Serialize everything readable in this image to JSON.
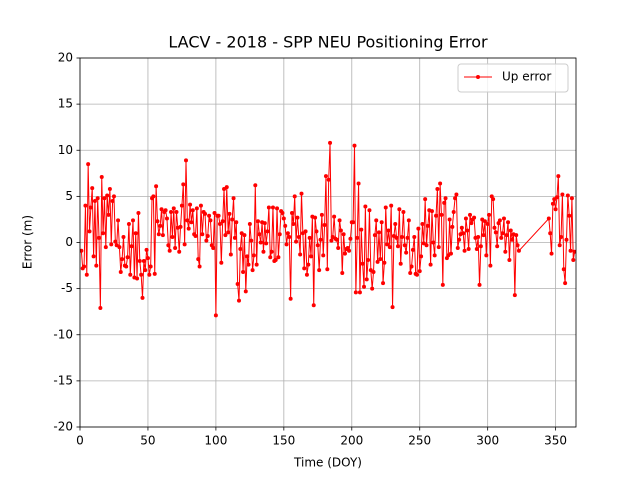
{
  "chart_data": {
    "type": "line",
    "title": "LACV - 2018 - SPP NEU Positioning Error",
    "xlabel": "Time (DOY)",
    "ylabel": "Error (m)",
    "xlim": [
      0,
      365
    ],
    "ylim": [
      -20,
      20
    ],
    "xticks": [
      0,
      50,
      100,
      150,
      200,
      250,
      300,
      350
    ],
    "yticks": [
      -20,
      -15,
      -10,
      -5,
      0,
      5,
      10,
      15,
      20
    ],
    "grid": true,
    "legend": "upper right",
    "x": [
      1,
      2,
      3,
      4,
      5,
      6,
      7,
      8,
      9,
      10,
      11,
      12,
      13,
      14,
      15,
      16,
      17,
      18,
      19,
      20,
      21,
      22,
      23,
      24,
      25,
      26,
      27,
      28,
      29,
      30,
      31,
      32,
      33,
      34,
      35,
      36,
      37,
      38,
      39,
      40,
      41,
      42,
      43,
      44,
      45,
      46,
      47,
      48,
      49,
      50,
      51,
      52,
      53,
      54,
      55,
      56,
      57,
      58,
      59,
      60,
      61,
      62,
      63,
      64,
      65,
      66,
      67,
      68,
      69,
      70,
      71,
      72,
      73,
      74,
      75,
      76,
      77,
      78,
      79,
      80,
      81,
      82,
      83,
      84,
      85,
      86,
      87,
      88,
      89,
      90,
      91,
      92,
      93,
      94,
      95,
      96,
      97,
      98,
      99,
      100,
      101,
      102,
      103,
      104,
      105,
      106,
      107,
      108,
      109,
      110,
      111,
      112,
      113,
      114,
      115,
      116,
      117,
      118,
      119,
      120,
      121,
      122,
      123,
      124,
      125,
      126,
      127,
      128,
      129,
      130,
      131,
      132,
      133,
      134,
      135,
      136,
      137,
      138,
      139,
      140,
      141,
      142,
      143,
      144,
      145,
      146,
      147,
      148,
      149,
      150,
      151,
      152,
      153,
      154,
      155,
      156,
      157,
      158,
      159,
      160,
      161,
      162,
      163,
      164,
      165,
      166,
      167,
      168,
      169,
      170,
      171,
      172,
      173,
      174,
      175,
      176,
      177,
      178,
      179,
      180,
      181,
      182,
      183,
      184,
      185,
      186,
      187,
      188,
      189,
      190,
      191,
      192,
      193,
      194,
      195,
      196,
      197,
      198,
      199,
      200,
      201,
      202,
      203,
      204,
      205,
      206,
      207,
      208,
      209,
      210,
      211,
      212,
      213,
      214,
      215,
      216,
      217,
      218,
      219,
      220,
      221,
      222,
      223,
      224,
      225,
      226,
      227,
      228,
      229,
      230,
      231,
      232,
      233,
      234,
      235,
      236,
      237,
      238,
      239,
      240,
      241,
      242,
      243,
      244,
      245,
      246,
      247,
      248,
      249,
      250,
      251,
      252,
      253,
      254,
      255,
      256,
      257,
      258,
      259,
      260,
      261,
      262,
      263,
      264,
      265,
      266,
      267,
      268,
      269,
      270,
      271,
      272,
      273,
      274,
      275,
      276,
      277,
      278,
      279,
      280,
      281,
      282,
      283,
      284,
      285,
      286,
      287,
      288,
      289,
      290,
      291,
      292,
      293,
      294,
      295,
      296,
      297,
      298,
      299,
      300,
      301,
      302,
      303,
      304,
      305,
      306,
      307,
      308,
      309,
      310,
      311,
      312,
      313,
      314,
      315,
      316,
      317,
      318,
      319,
      320,
      321,
      322,
      323,
      345,
      346,
      347,
      348,
      349,
      350,
      351,
      352,
      353,
      354,
      355,
      356,
      357,
      358,
      359,
      360,
      361,
      362,
      363,
      364
    ],
    "series": [
      {
        "name": "Up error",
        "color": "#ff0000",
        "values": [
          -0.9,
          -2.8,
          -2.6,
          4.0,
          -3.5,
          8.5,
          1.2,
          3.8,
          5.9,
          -1.5,
          4.5,
          -2.5,
          4.8,
          0.5,
          -7.1,
          7.1,
          1.0,
          4.8,
          -0.5,
          5.1,
          3.0,
          5.8,
          -0.2,
          4.5,
          5.0,
          0.1,
          -0.3,
          2.4,
          -0.5,
          -3.2,
          -1.8,
          0.6,
          -2.5,
          -2.6,
          -1.6,
          2.0,
          -3.5,
          -0.4,
          2.4,
          -3.8,
          1.0,
          -3.9,
          3.2,
          -2.0,
          -3.5,
          -6.0,
          -2.0,
          -3.0,
          -0.8,
          -1.7,
          -3.5,
          -2.6,
          4.8,
          5.0,
          -3.4,
          6.1,
          2.3,
          0.9,
          1.8,
          3.6,
          0.8,
          3.3,
          3.5,
          2.6,
          -0.3,
          -0.9,
          3.3,
          0.6,
          3.7,
          -0.6,
          3.3,
          1.6,
          -1.0,
          1.7,
          4.0,
          6.3,
          -0.2,
          8.9,
          2.4,
          1.5,
          4.1,
          2.2,
          3.5,
          0.9,
          0.7,
          3.7,
          -1.8,
          -2.6,
          4.0,
          0.9,
          3.3,
          3.1,
          0.2,
          0.7,
          2.9,
          2.4,
          -0.3,
          -0.6,
          3.2,
          -7.9,
          2.9,
          2.9,
          2.0,
          -2.2,
          2.3,
          5.8,
          0.8,
          6.0,
          1.1,
          3.1,
          -1.3,
          2.5,
          4.8,
          0.5,
          2.2,
          -4.5,
          -6.3,
          -0.7,
          1.0,
          -3.2,
          0.8,
          -5.3,
          -1.5,
          -2.4,
          2.0,
          0.2,
          -3.0,
          -1.4,
          6.2,
          -2.4,
          2.3,
          0.9,
          0.0,
          2.2,
          -1.0,
          2.1,
          -0.1,
          1.2,
          3.8,
          -1.6,
          -1.0,
          3.8,
          -2.0,
          -1.9,
          3.7,
          -1.6,
          0.9,
          3.4,
          3.2,
          2.6,
          1.8,
          -0.2,
          1.0,
          0.6,
          -6.1,
          3.2,
          2.0,
          5.0,
          0.1,
          2.7,
          0.6,
          -1.3,
          5.3,
          1.0,
          -2.8,
          1.2,
          -3.5,
          -2.4,
          0.5,
          -1.5,
          2.8,
          -6.8,
          2.7,
          1.2,
          -0.3,
          -3.0,
          0.3,
          3.0,
          -1.4,
          1.9,
          7.2,
          -2.9,
          6.8,
          10.8,
          0.2,
          0.6,
          2.8,
          0.4,
          0.3,
          -0.6,
          2.4,
          1.3,
          -3.3,
          0.9,
          -1.2,
          -0.7,
          -0.6,
          -0.9,
          0.4,
          2.2,
          2.2,
          10.5,
          -5.4,
          0.5,
          6.4,
          -5.4,
          1.4,
          -2.3,
          -4.8,
          3.9,
          -4.0,
          -1.9,
          3.5,
          -3.0,
          -5.0,
          -3.2,
          0.8,
          2.4,
          -2.1,
          1.1,
          -1.8,
          2.2,
          -4.4,
          -2.2,
          3.8,
          -0.2,
          1.3,
          -0.5,
          4.0,
          -7.0,
          0.7,
          2.0,
          0.5,
          -0.4,
          3.6,
          -2.3,
          0.6,
          3.3,
          -0.3,
          -1.1,
          0.5,
          2.4,
          -3.3,
          -2.6,
          -0.8,
          0.6,
          -3.4,
          -3.5,
          1.5,
          -3.1,
          -1.5,
          2.0,
          -0.1,
          4.7,
          -0.3,
          1.8,
          3.5,
          -2.4,
          3.4,
          0.0,
          -1.4,
          2.9,
          5.8,
          -0.5,
          6.4,
          3.0,
          -4.6,
          4.3,
          4.8,
          -1.7,
          -1.4,
          2.5,
          -1.2,
          1.7,
          3.3,
          4.8,
          5.2,
          -0.6,
          0.3,
          0.9,
          1.6,
          1.0,
          -0.9,
          2.6,
          1.3,
          -0.7,
          3.0,
          2.1,
          2.5,
          2.7,
          0.5,
          -0.7,
          0.6,
          -4.6,
          -0.4,
          2.5,
          0.8,
          2.3,
          -1.4,
          2.0,
          3.0,
          -2.5,
          5.0,
          4.7,
          1.6,
          1.1,
          -0.4,
          2.1,
          2.4,
          0.5,
          1.0,
          2.6,
          -1.0,
          0.8,
          2.2,
          -1.9,
          1.3,
          0.3,
          0.9,
          -5.7,
          0.8,
          -0.3,
          -0.9,
          2.6,
          1.0,
          -1.2,
          4.2,
          4.7,
          3.6,
          4.9,
          7.2,
          -0.3,
          0.6,
          5.2,
          -2.9,
          -4.4,
          0.3,
          5.1,
          2.9,
          -0.9,
          4.8,
          -1.9,
          -1.0
        ]
      }
    ]
  }
}
